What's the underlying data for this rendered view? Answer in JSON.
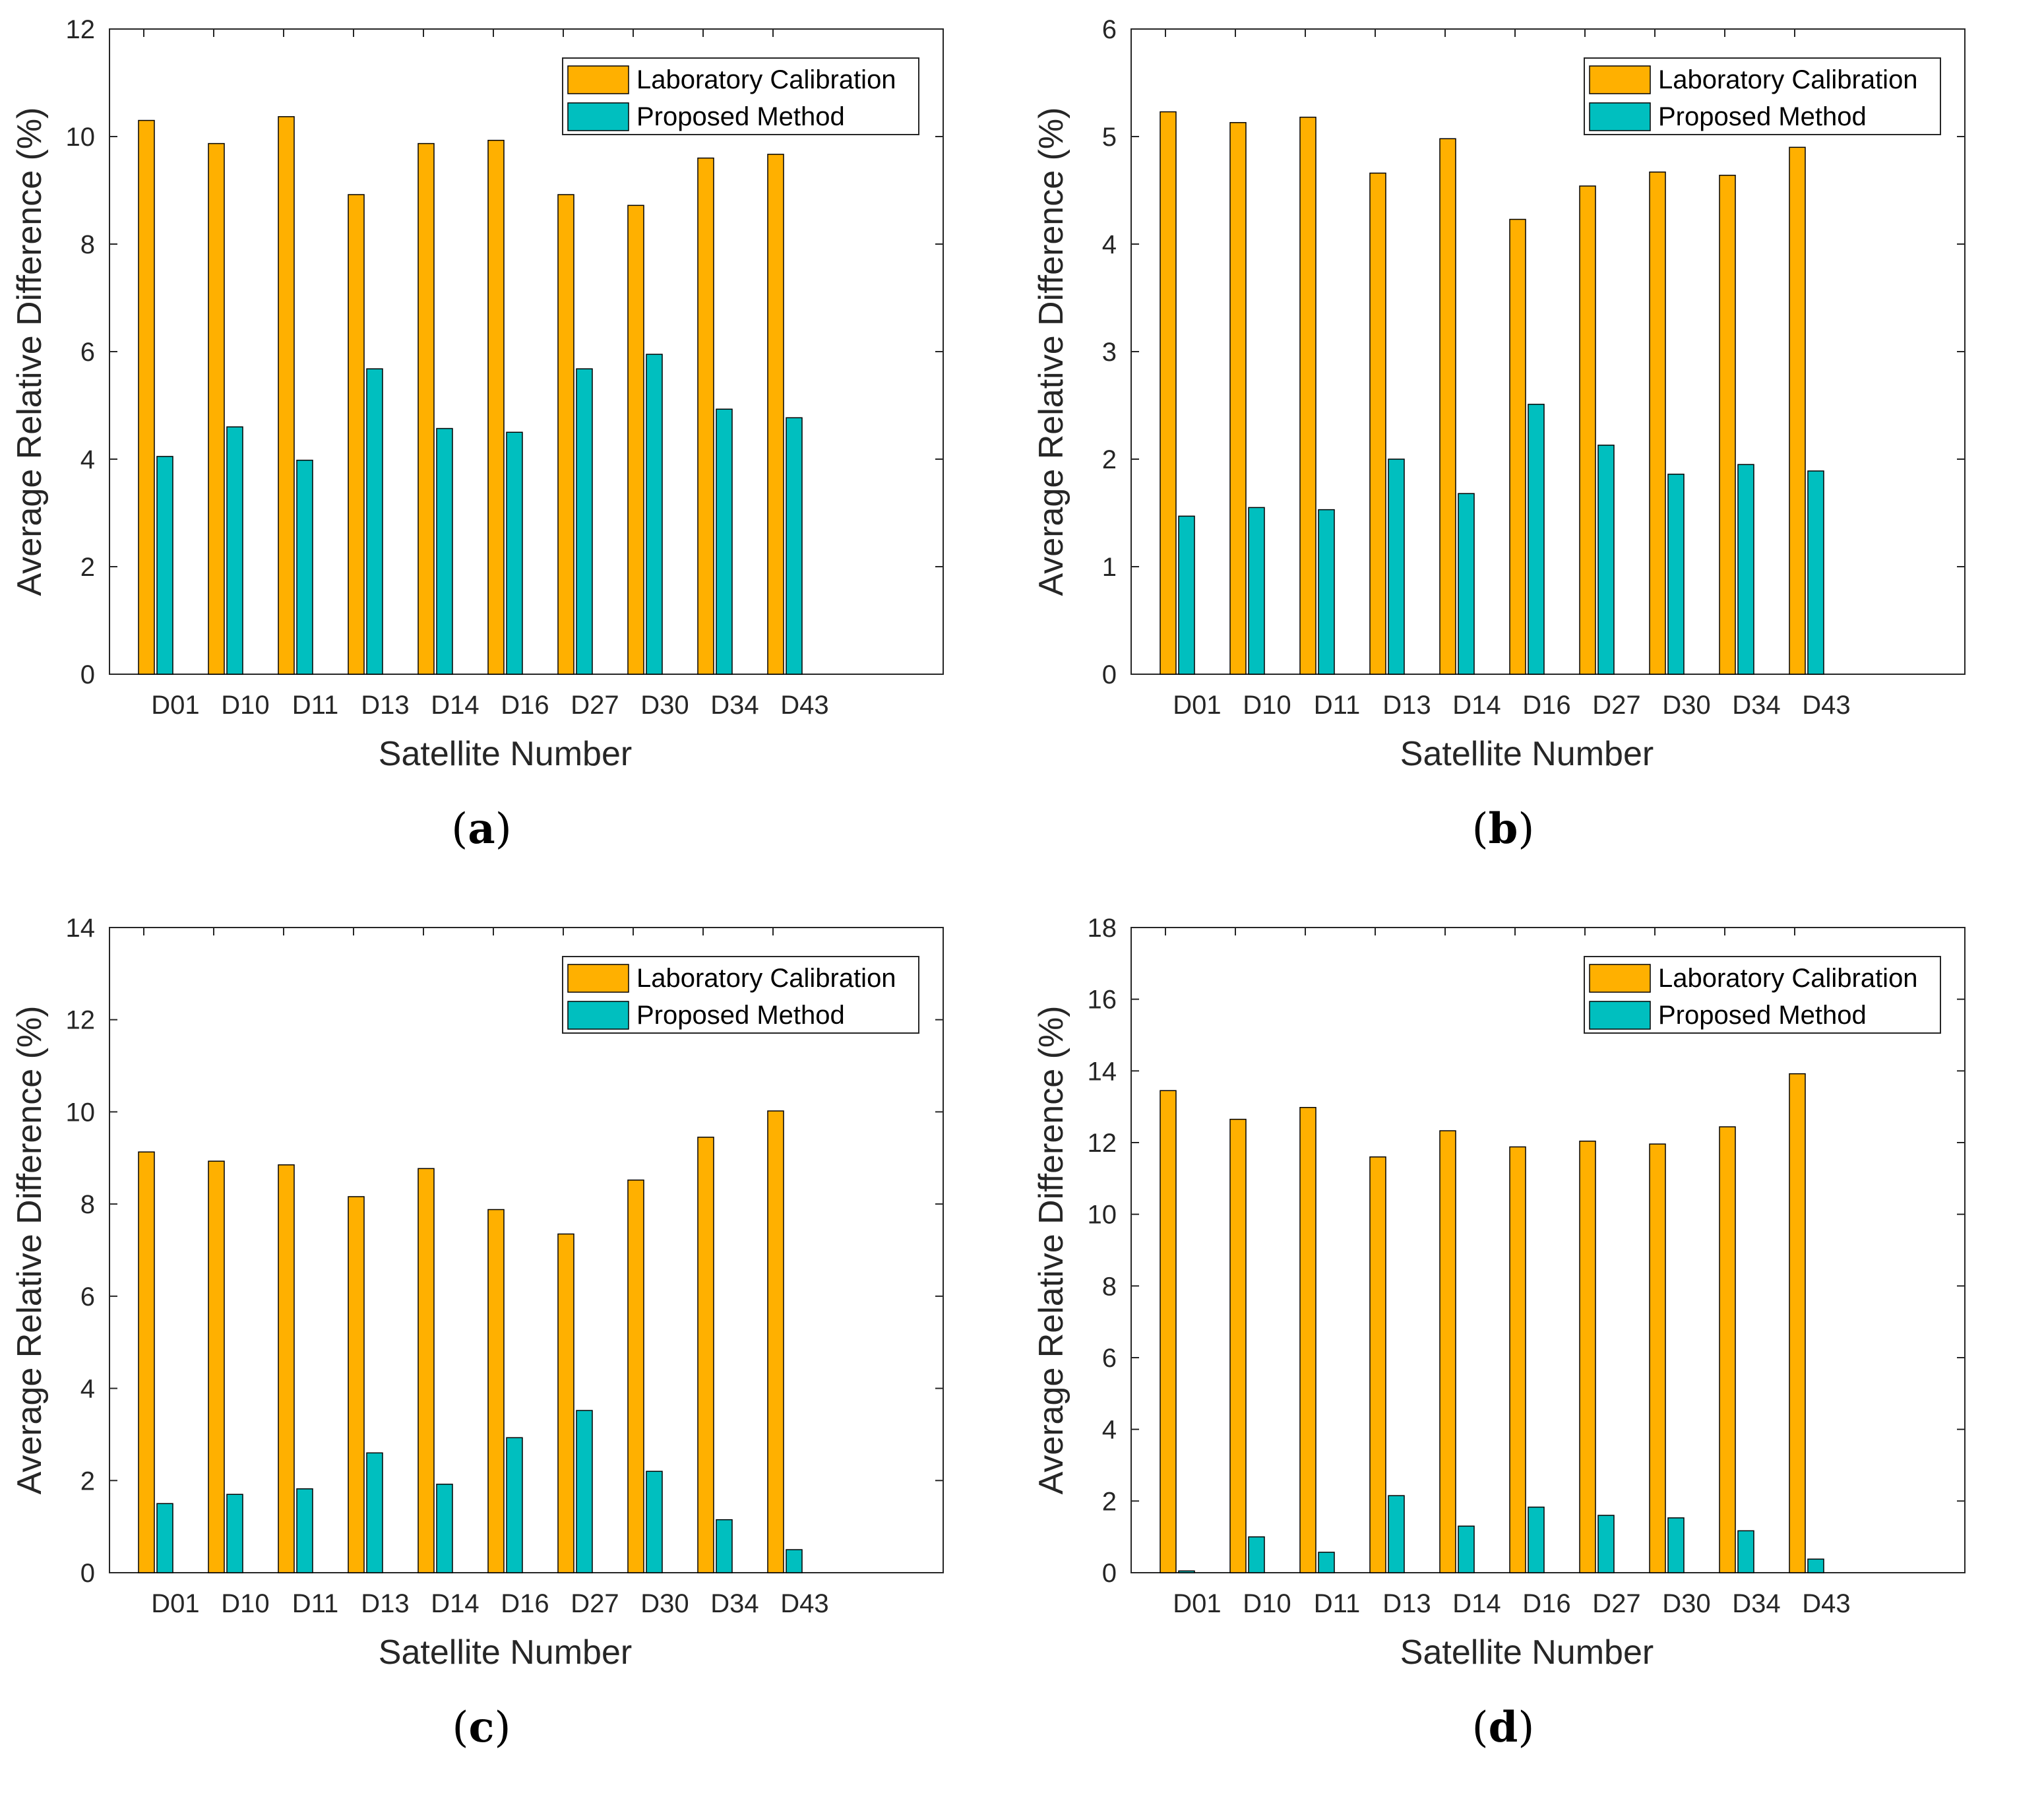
{
  "colors": {
    "lab": "#FFB000",
    "proposed": "#00BFBF",
    "axis": "#262626",
    "bar_edge": "#000000"
  },
  "chart_data": [
    {
      "panel_label": "a",
      "type": "bar",
      "title": "",
      "xlabel": "Satellite Number",
      "ylabel": "Average Relative Difference (%)",
      "ylim": [
        0,
        12
      ],
      "yticks": [
        0,
        2,
        4,
        6,
        8,
        10,
        12
      ],
      "categories": [
        "D01",
        "D10",
        "D11",
        "D13",
        "D14",
        "D16",
        "D27",
        "D30",
        "D34",
        "D43"
      ],
      "series": [
        {
          "name": "Laboratory Calibration",
          "color": "#FFB000",
          "values": [
            10.3,
            9.87,
            10.37,
            8.92,
            9.87,
            9.93,
            8.92,
            8.72,
            9.6,
            9.67
          ]
        },
        {
          "name": "Proposed Method",
          "color": "#00BFBF",
          "values": [
            4.05,
            4.6,
            3.98,
            5.68,
            4.57,
            4.5,
            5.68,
            5.95,
            4.93,
            4.77
          ]
        }
      ],
      "legend_position": "top-right"
    },
    {
      "panel_label": "b",
      "type": "bar",
      "title": "",
      "xlabel": "Satellite Number",
      "ylabel": "Average Relative Difference (%)",
      "ylim": [
        0,
        6
      ],
      "yticks": [
        0,
        1,
        2,
        3,
        4,
        5,
        6
      ],
      "categories": [
        "D01",
        "D10",
        "D11",
        "D13",
        "D14",
        "D16",
        "D27",
        "D30",
        "D34",
        "D43"
      ],
      "series": [
        {
          "name": "Laboratory Calibration",
          "color": "#FFB000",
          "values": [
            5.23,
            5.13,
            5.18,
            4.66,
            4.98,
            4.23,
            4.54,
            4.67,
            4.64,
            4.9
          ]
        },
        {
          "name": "Proposed Method",
          "color": "#00BFBF",
          "values": [
            1.47,
            1.55,
            1.53,
            2.0,
            1.68,
            2.51,
            2.13,
            1.86,
            1.95,
            1.89
          ]
        }
      ],
      "legend_position": "top-right"
    },
    {
      "panel_label": "c",
      "type": "bar",
      "title": "",
      "xlabel": "Satellite Number",
      "ylabel": "Average Relative Difference (%)",
      "ylim": [
        0,
        14
      ],
      "yticks": [
        0,
        2,
        4,
        6,
        8,
        10,
        12,
        14
      ],
      "categories": [
        "D01",
        "D10",
        "D11",
        "D13",
        "D14",
        "D16",
        "D27",
        "D30",
        "D34",
        "D43"
      ],
      "series": [
        {
          "name": "Laboratory Calibration",
          "color": "#FFB000",
          "values": [
            9.13,
            8.93,
            8.85,
            8.16,
            8.77,
            7.88,
            7.35,
            8.52,
            9.45,
            10.02
          ]
        },
        {
          "name": "Proposed Method",
          "color": "#00BFBF",
          "values": [
            1.5,
            1.7,
            1.82,
            2.6,
            1.92,
            2.93,
            3.52,
            2.2,
            1.15,
            0.5
          ]
        }
      ],
      "legend_position": "top-right"
    },
    {
      "panel_label": "d",
      "type": "bar",
      "title": "",
      "xlabel": "Satellite Number",
      "ylabel": "Average Relative Difference (%)",
      "ylim": [
        0,
        18
      ],
      "yticks": [
        0,
        2,
        4,
        6,
        8,
        10,
        12,
        14,
        16,
        18
      ],
      "categories": [
        "D01",
        "D10",
        "D11",
        "D13",
        "D14",
        "D16",
        "D27",
        "D30",
        "D34",
        "D43"
      ],
      "series": [
        {
          "name": "Laboratory Calibration",
          "color": "#FFB000",
          "values": [
            13.45,
            12.65,
            12.98,
            11.6,
            12.33,
            11.88,
            12.04,
            11.96,
            12.44,
            13.92
          ]
        },
        {
          "name": "Proposed Method",
          "color": "#00BFBF",
          "values": [
            0.05,
            1.0,
            0.57,
            2.15,
            1.3,
            1.83,
            1.6,
            1.53,
            1.17,
            0.38
          ]
        }
      ],
      "legend_position": "top-right"
    }
  ]
}
